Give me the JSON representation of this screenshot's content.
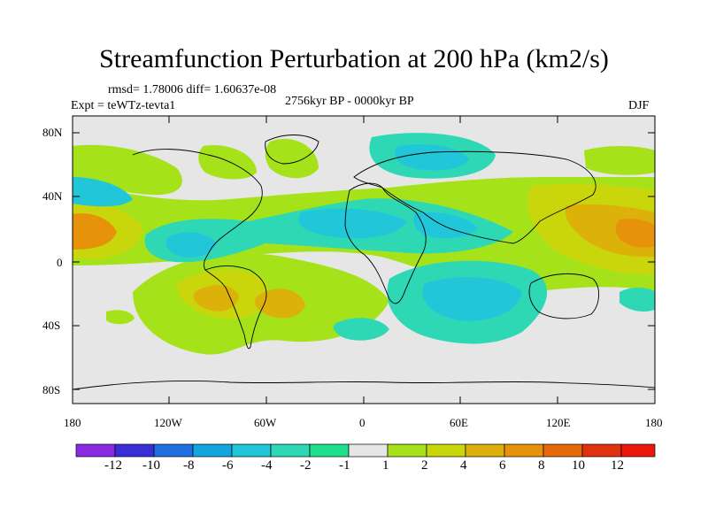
{
  "chart_data": {
    "type": "heatmap",
    "title": "Streamfunction Perturbation at 200 hPa (km2/s)",
    "stats_text": "rmsd= 1.78006  diff= 1.60637e-08",
    "period": "2756kyr BP - 0000kyr BP",
    "experiment": "Expt = teWTz-tevta1",
    "season": "DJF",
    "x_tick_labels": [
      "180",
      "120W",
      "60W",
      "0",
      "60E",
      "120E",
      "180"
    ],
    "x_tick_values": [
      -180,
      -120,
      -60,
      0,
      60,
      120,
      180
    ],
    "y_tick_labels": [
      "80N",
      "40N",
      "0",
      "40S",
      "80S"
    ],
    "y_tick_values": [
      80,
      40,
      0,
      -40,
      -80
    ],
    "xlim": [
      -180,
      180
    ],
    "ylim": [
      -90,
      90
    ],
    "colorbar": {
      "labels": [
        "-12",
        "-10",
        "-8",
        "-6",
        "-4",
        "-2",
        "-1",
        "1",
        "2",
        "4",
        "6",
        "8",
        "10",
        "12"
      ],
      "colors": [
        "#8a2be2",
        "#3a2fd6",
        "#1f6fe0",
        "#12a6df",
        "#21c6d8",
        "#2fd8b5",
        "#1fe08a",
        "#e6e6e6",
        "#a6e21a",
        "#c9d60c",
        "#dcb20a",
        "#e6920a",
        "#e66a0a",
        "#e0320e",
        "#e8180e"
      ]
    },
    "anomalies": [
      {
        "name": "north-pacific-east-high",
        "lon": 172,
        "lat": 18,
        "value": 6
      },
      {
        "name": "north-pacific-west-high",
        "lon": -168,
        "lat": 18,
        "value": 5
      },
      {
        "name": "central-america-low",
        "lon": -105,
        "lat": 10,
        "value": -3
      },
      {
        "name": "tropical-atlantic-africa-low",
        "lon": -10,
        "lat": 20,
        "value": -3
      },
      {
        "name": "south-america-high",
        "lon": -70,
        "lat": -22,
        "value": 4
      },
      {
        "name": "south-atlantic-high",
        "lon": -50,
        "lat": -28,
        "value": 3
      },
      {
        "name": "indian-ocean-low",
        "lon": 70,
        "lat": -25,
        "value": -4
      },
      {
        "name": "siberia-low",
        "lon": 60,
        "lat": 68,
        "value": -2
      },
      {
        "name": "east-pacific-north-low",
        "lon": -170,
        "lat": 45,
        "value": -2
      },
      {
        "name": "greenland-high",
        "lon": -50,
        "lat": 60,
        "value": 2
      }
    ]
  }
}
